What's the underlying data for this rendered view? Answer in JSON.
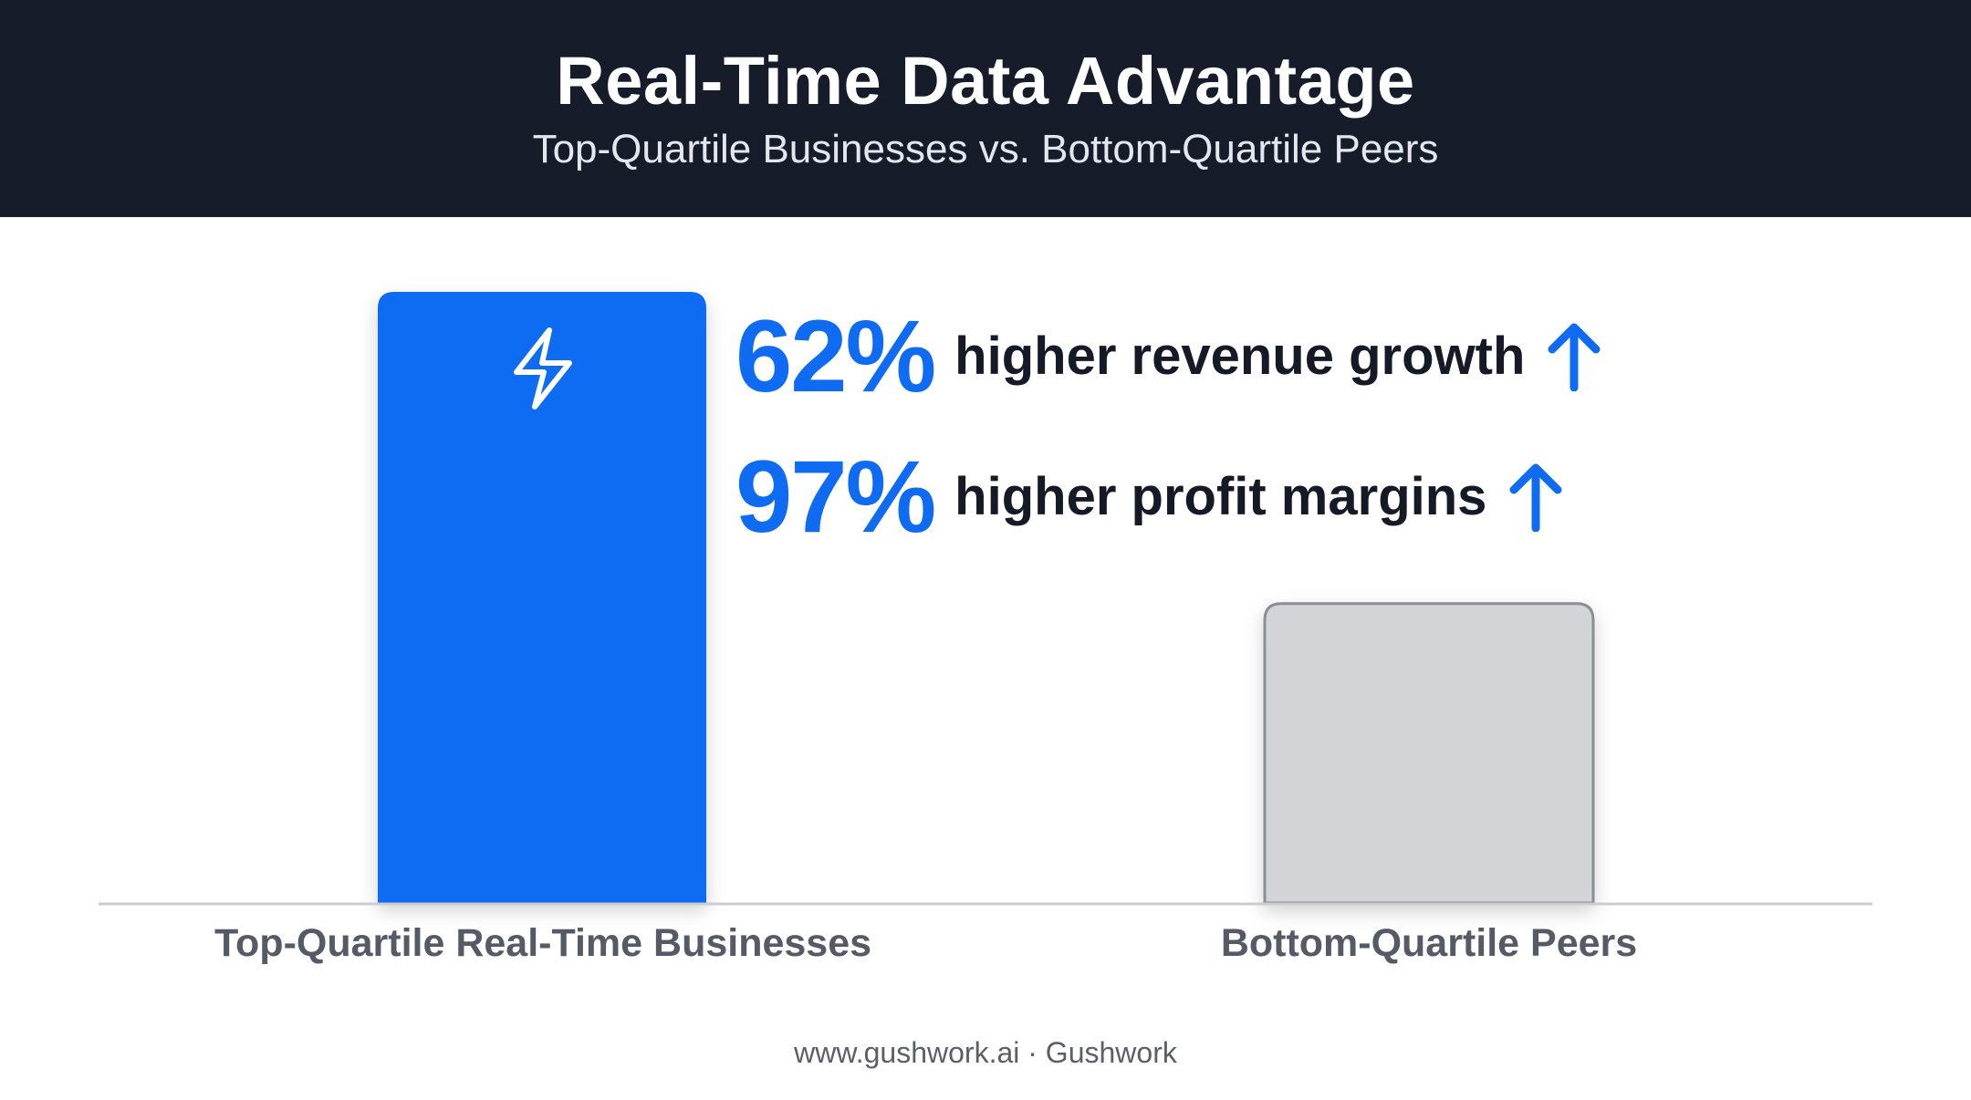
{
  "header": {
    "title": "Real-Time Data Advantage",
    "subtitle": "Top-Quartile Businesses vs. Bottom-Quartile Peers"
  },
  "stats": [
    {
      "value": "62%",
      "text": "higher revenue growth",
      "icon": "arrow-up-icon"
    },
    {
      "value": "97%",
      "text": "higher profit margins",
      "icon": "arrow-up-icon"
    }
  ],
  "footer": "www.gushwork.ai · Gushwork",
  "colors": {
    "header_bg": "#161c2a",
    "accent_blue": "#0f6cf2",
    "bar_top": "#0f6cf2",
    "bar_bottom": "#d2d4d8",
    "bar_bottom_border": "#8a8e96",
    "baseline": "#c9ccd1"
  },
  "chart_data": {
    "type": "bar",
    "categories": [
      "Top-Quartile Real-Time Businesses",
      "Bottom-Quartile Peers"
    ],
    "values": [
      100,
      49
    ],
    "value_scale": "relative height (percent of tallest bar); no numeric axis printed",
    "bar_icons": [
      "lightning-icon",
      null
    ],
    "grid": false,
    "legend": "none"
  }
}
